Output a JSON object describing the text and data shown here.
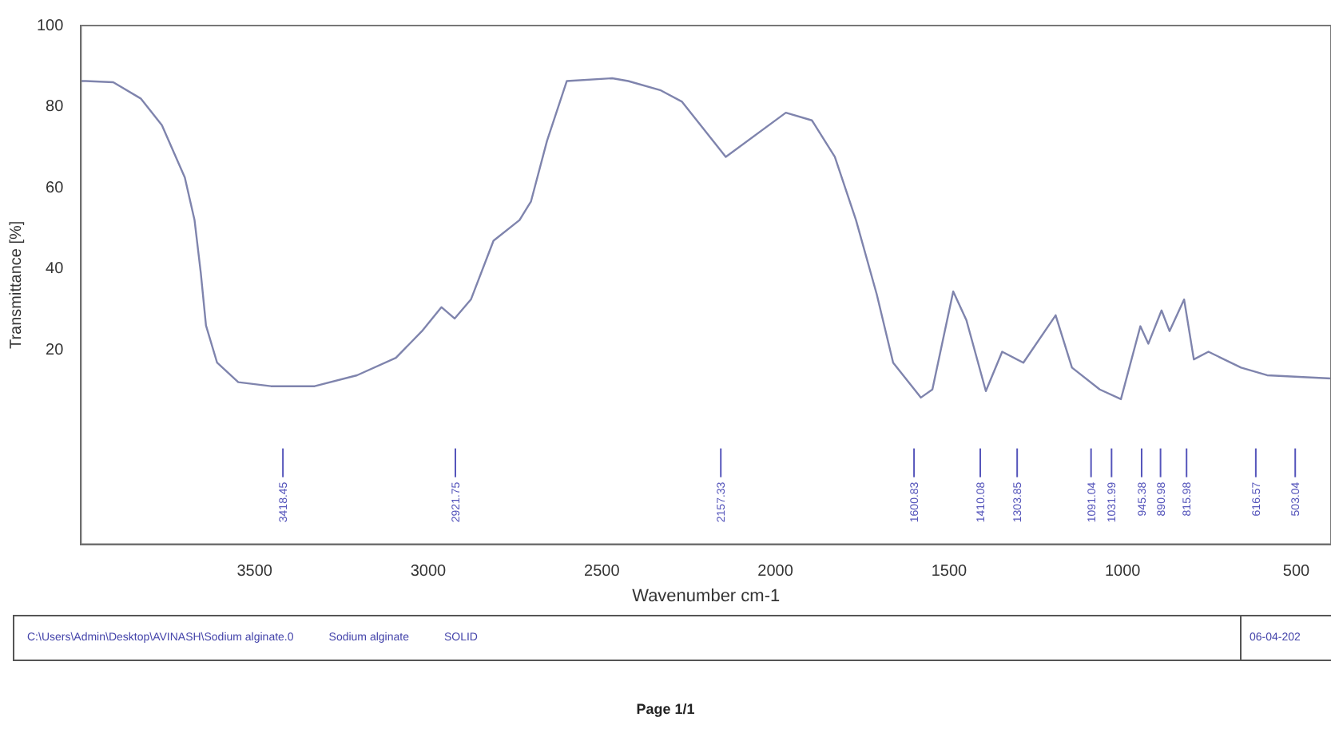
{
  "chart_data": {
    "type": "line",
    "xlabel": "Wavenumber cm-1",
    "ylabel": "Transmittance [%]",
    "xlim": [
      4000,
      400
    ],
    "xticks": [
      3500,
      3000,
      2500,
      2000,
      1500,
      1000,
      500
    ],
    "ylim": [
      -28,
      100
    ],
    "yticks": [
      20,
      40,
      60,
      80,
      100
    ],
    "grid": false,
    "legend": false,
    "x": [
      3999,
      3986,
      3907,
      3828,
      3767,
      3701,
      3673,
      3655,
      3640,
      3608,
      3547,
      3453,
      3327,
      3205,
      3093,
      3018,
      2962,
      2924,
      2877,
      2812,
      2737,
      2704,
      2658,
      2601,
      2470,
      2424,
      2330,
      2269,
      2143,
      1970,
      1895,
      1829,
      1768,
      1708,
      1661,
      1581,
      1548,
      1488,
      1450,
      1394,
      1347,
      1286,
      1193,
      1146,
      1066,
      1005,
      949,
      926,
      888,
      865,
      823,
      795,
      753,
      659,
      584,
      400
    ],
    "series": [
      {
        "color": "#7f84ad",
        "values": [
          86.3,
          86.3,
          86,
          82,
          75.4,
          62.5,
          52,
          39,
          26,
          16.8,
          12,
          11,
          11,
          13.7,
          18,
          24.6,
          30.5,
          27.7,
          32.4,
          46.9,
          52,
          56.6,
          71.5,
          86.3,
          87,
          86.3,
          84,
          81.2,
          67.6,
          78.5,
          76.6,
          67.6,
          52,
          33.6,
          16.8,
          8.2,
          10.2,
          34.4,
          27.3,
          9.8,
          19.5,
          16.8,
          28.5,
          15.6,
          10.2,
          7.8,
          25.8,
          21.5,
          29.7,
          24.6,
          32.4,
          17.6,
          19.5,
          15.6,
          13.7,
          12.9
        ]
      }
    ],
    "ref_lines": [
      {
        "axis": "x",
        "value": 3418.45,
        "label": "3418.45",
        "color": "#5555bb"
      },
      {
        "axis": "x",
        "value": 2921.75,
        "label": "2921.75",
        "color": "#5555bb"
      },
      {
        "axis": "x",
        "value": 2157.33,
        "label": "2157.33",
        "color": "#5555bb"
      },
      {
        "axis": "x",
        "value": 1600.83,
        "label": "1600.83",
        "color": "#5555bb"
      },
      {
        "axis": "x",
        "value": 1410.08,
        "label": "1410.08",
        "color": "#5555bb"
      },
      {
        "axis": "x",
        "value": 1303.85,
        "label": "1303.85",
        "color": "#5555bb"
      },
      {
        "axis": "x",
        "value": 1091.04,
        "label": "1091.04",
        "color": "#5555bb"
      },
      {
        "axis": "x",
        "value": 1031.99,
        "label": "1031.99",
        "color": "#5555bb"
      },
      {
        "axis": "x",
        "value": 945.38,
        "label": "945.38",
        "color": "#5555bb"
      },
      {
        "axis": "x",
        "value": 890.98,
        "label": "890.98",
        "color": "#5555bb"
      },
      {
        "axis": "x",
        "value": 815.98,
        "label": "815.98",
        "color": "#5555bb"
      },
      {
        "axis": "x",
        "value": 616.57,
        "label": "616.57",
        "color": "#5555bb"
      },
      {
        "axis": "x",
        "value": 503.04,
        "label": "503.04",
        "color": "#5555bb"
      }
    ],
    "annotations": [
      "C:\\Users\\Admin\\Desktop\\AVINASH\\Sodium alginate.0",
      "Sodium alginate",
      "SOLID",
      "06-04-202",
      "Page 1/1"
    ]
  }
}
